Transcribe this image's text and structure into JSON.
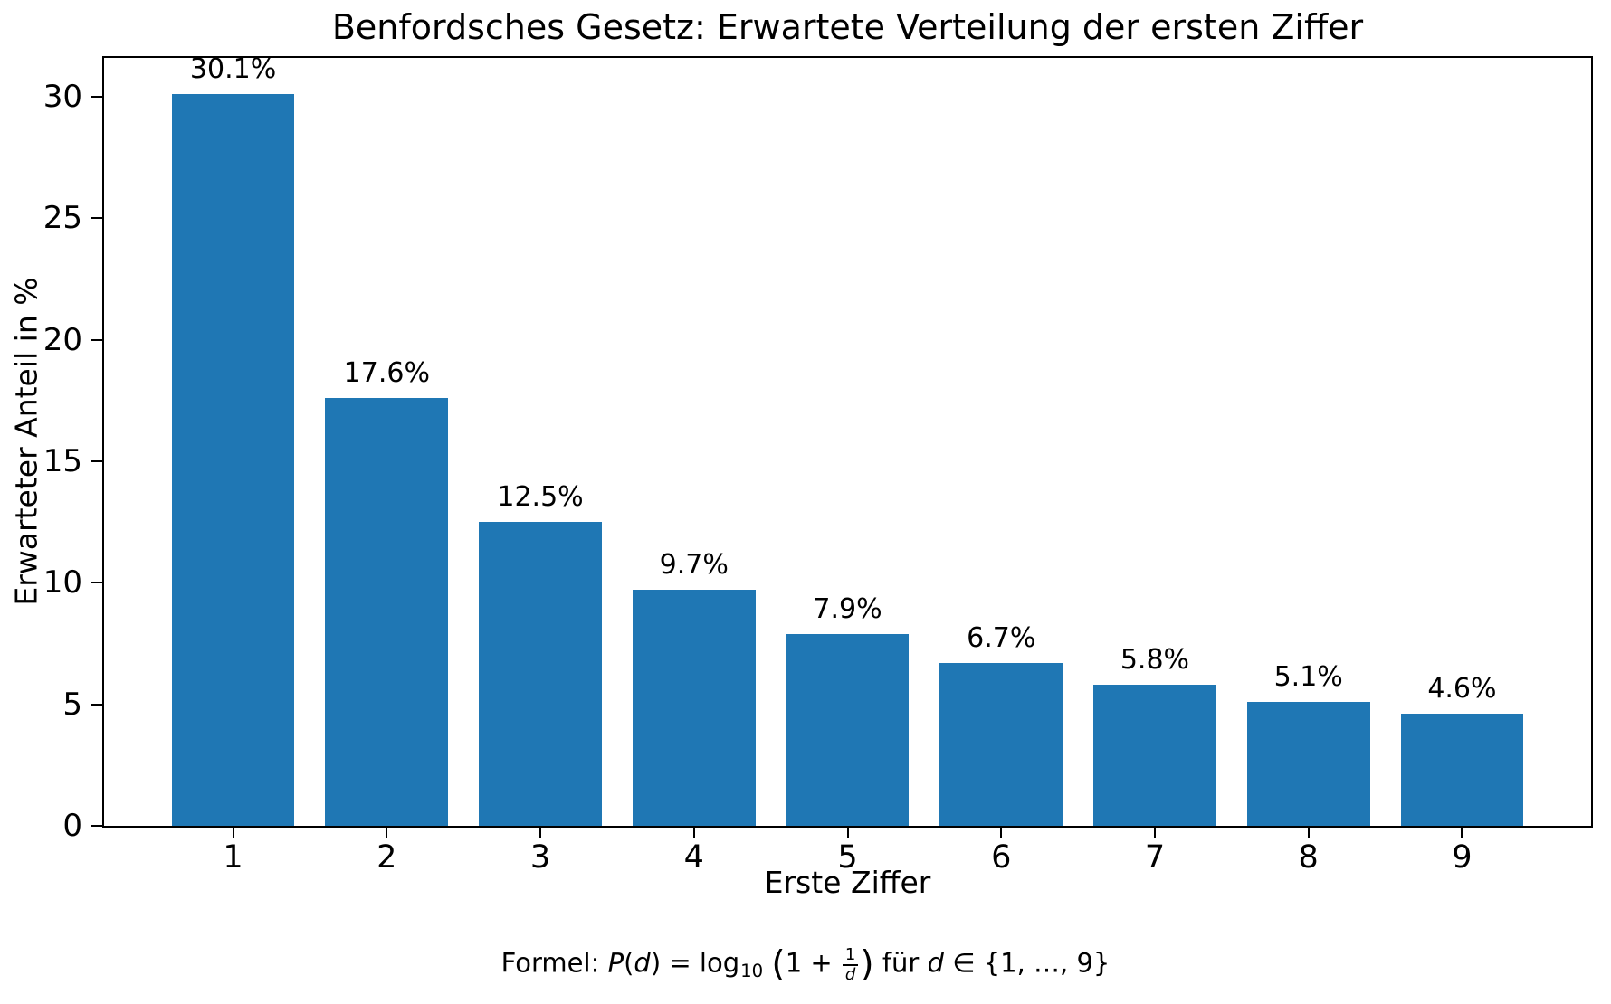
{
  "chart_data": {
    "type": "bar",
    "title": "Benfordsches Gesetz: Erwartete Verteilung der ersten Ziffer",
    "xlabel": "Erste Ziffer",
    "ylabel": "Erwarteter Anteil in %",
    "categories": [
      "1",
      "2",
      "3",
      "4",
      "5",
      "6",
      "7",
      "8",
      "9"
    ],
    "values": [
      30.1,
      17.6,
      12.5,
      9.7,
      7.9,
      6.7,
      5.8,
      5.1,
      4.6
    ],
    "bar_labels": [
      "30.1%",
      "17.6%",
      "12.5%",
      "9.7%",
      "7.9%",
      "6.7%",
      "5.8%",
      "5.1%",
      "4.6%"
    ],
    "yticks": [
      0,
      5,
      10,
      15,
      20,
      25,
      30
    ],
    "ylim": [
      0,
      31.6
    ],
    "xlim": [
      0.16,
      9.84
    ],
    "bar_width_units": 0.8,
    "bar_color": "#1f77b4",
    "axis_color": "#000000",
    "grid": false,
    "legend": "none"
  },
  "formula": {
    "prefix": "Formel: ",
    "func_name": "P",
    "lparen": "(",
    "arg": "d",
    "rparen": ")",
    "equals": " = ",
    "log": "log",
    "log_base": "10",
    "big_lparen": "(",
    "one_plus": "1 + ",
    "frac_numerator": "1",
    "frac_denominator": "d",
    "big_rparen": ")",
    "fuer": " für ",
    "var": "d",
    "element_of": " ∈ ",
    "set_text": "{1, …, 9}"
  }
}
